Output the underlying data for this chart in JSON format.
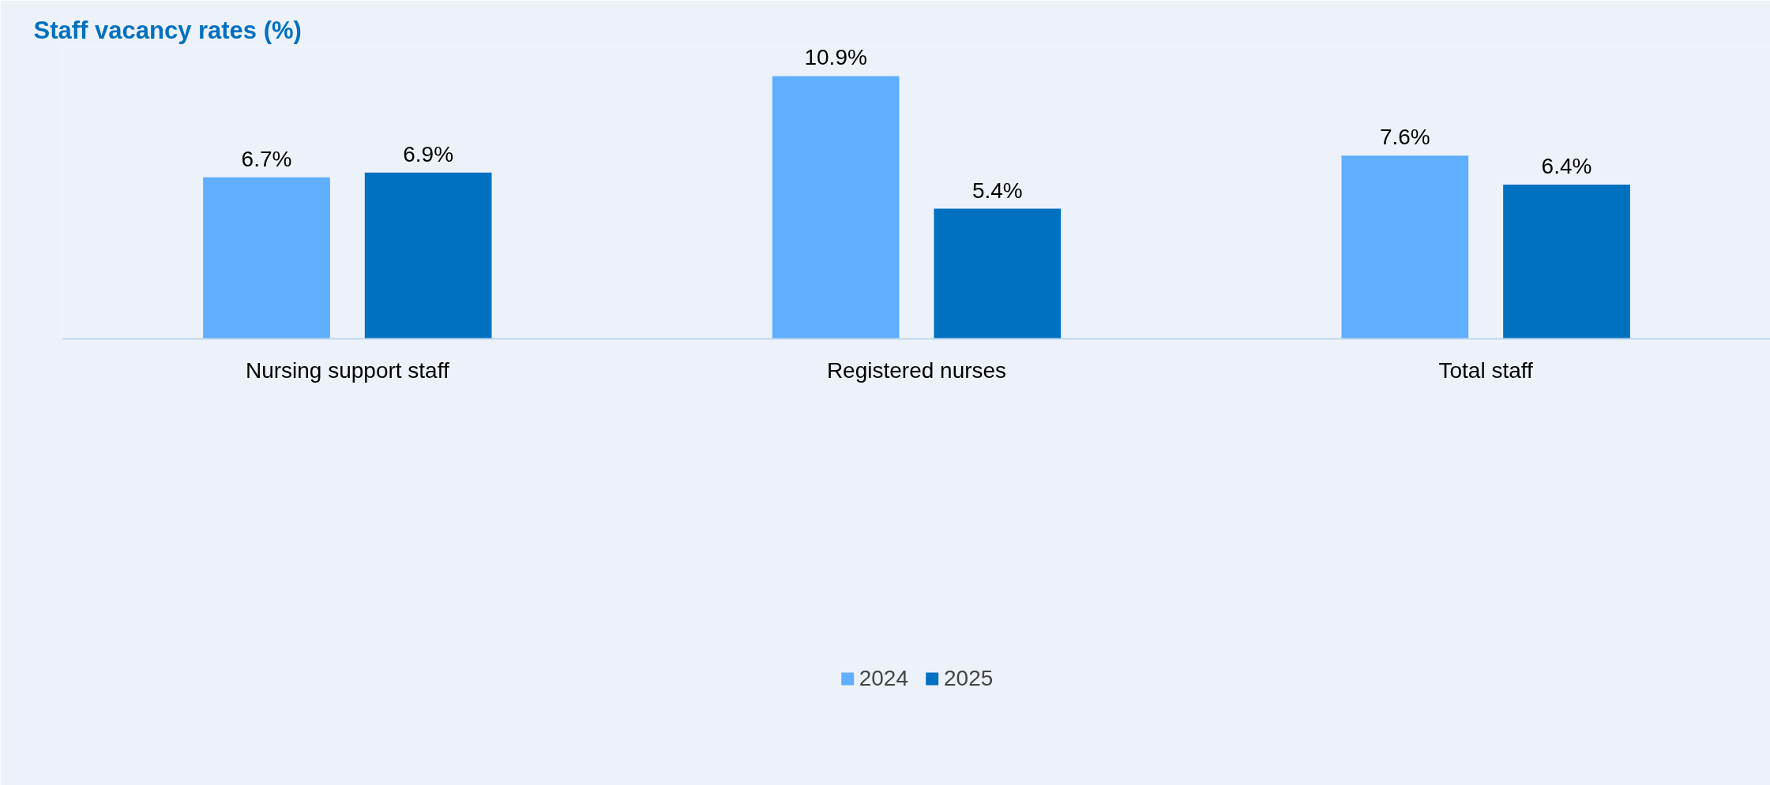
{
  "chart_data": {
    "type": "bar",
    "title": "Staff vacancy rates (%)",
    "categories": [
      "Nursing support staff",
      "Registered nurses",
      "Total staff"
    ],
    "series": [
      {
        "name": "2024",
        "color": "#60aeff",
        "values": [
          6.7,
          10.9,
          7.6
        ],
        "value_labels": [
          "6.7%",
          "10.9%",
          "7.6%"
        ]
      },
      {
        "name": "2025",
        "color": "#0070c0",
        "values": [
          6.9,
          5.4,
          6.4
        ],
        "value_labels": [
          "6.9%",
          "5.4%",
          "6.4%"
        ]
      }
    ],
    "legend": "bottom",
    "grid": false
  }
}
